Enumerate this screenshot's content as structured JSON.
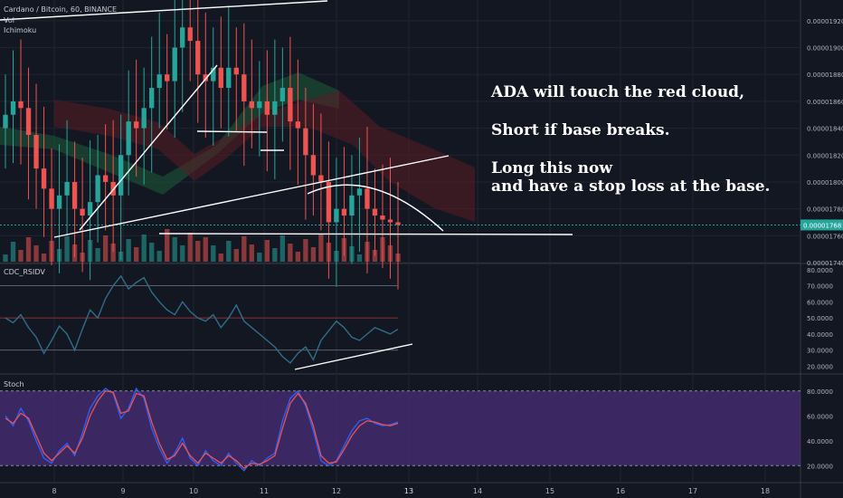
{
  "header": {
    "symbol_line": "Cardano / Bitcoin, 60, BINANCE",
    "vol_label": "Vol",
    "ichimoku_label": "Ichimoku"
  },
  "annotations": [
    "ADA will touch the red cloud,",
    "Short if base breaks.",
    "Long this now",
    "and have a stop loss at the base."
  ],
  "colors": {
    "background": "#131722",
    "up_candle": "#26a69a",
    "down_candle": "#ef5350",
    "cloud_green": "#1e5c3a",
    "cloud_red": "#5a1c22",
    "rsi_line": "#2f6e8a",
    "stoch_k": "#2962ff",
    "stoch_d": "#ef5350",
    "stoch_band": "#4a2e78",
    "price_tag": "#26a69a"
  },
  "chart_data": [
    {
      "type": "candlestick",
      "title": "Cardano / Bitcoin, 60, BINANCE",
      "x_ticks": [
        "8",
        "9",
        "10",
        "11",
        "12",
        "13",
        "14",
        "15",
        "16",
        "17",
        "18"
      ],
      "y_ticks": [
        "0.00001920",
        "0.00001900",
        "0.00001880",
        "0.00001860",
        "0.00001840",
        "0.00001820",
        "0.00001800",
        "0.00001780",
        "0.00001760",
        "0.00001740"
      ],
      "ylim": [
        1.74e-05,
        1.93e-05
      ],
      "current_price": "0.00001768",
      "close_series": [
        1.85e-05,
        1.86e-05,
        1.855e-05,
        1.835e-05,
        1.81e-05,
        1.795e-05,
        1.78e-05,
        1.79e-05,
        1.8e-05,
        1.78e-05,
        1.775e-05,
        1.785e-05,
        1.805e-05,
        1.8e-05,
        1.79e-05,
        1.82e-05,
        1.845e-05,
        1.84e-05,
        1.855e-05,
        1.87e-05,
        1.88e-05,
        1.875e-05,
        1.9e-05,
        1.915e-05,
        1.905e-05,
        1.88e-05,
        1.875e-05,
        1.885e-05,
        1.87e-05,
        1.885e-05,
        1.88e-05,
        1.86e-05,
        1.855e-05,
        1.86e-05,
        1.85e-05,
        1.86e-05,
        1.87e-05,
        1.845e-05,
        1.84e-05,
        1.82e-05,
        1.805e-05,
        1.8e-05,
        1.77e-05,
        1.78e-05,
        1.775e-05,
        1.79e-05,
        1.795e-05,
        1.78e-05,
        1.775e-05,
        1.772e-05,
        1.77e-05,
        1.768e-05
      ]
    },
    {
      "type": "line",
      "title": "CDC_RSIDV",
      "y_ticks": [
        "80.0000",
        "70.0000",
        "60.0000",
        "50.0000",
        "40.0000",
        "30.0000",
        "20.0000"
      ],
      "ylim": [
        18,
        81
      ],
      "levels": [
        70,
        50,
        30
      ],
      "values": [
        50,
        47,
        52,
        44,
        38,
        28,
        36,
        45,
        40,
        30,
        43,
        55,
        50,
        62,
        70,
        76,
        68,
        72,
        75,
        66,
        60,
        55,
        52,
        60,
        54,
        50,
        48,
        52,
        44,
        50,
        58,
        48,
        44,
        40,
        36,
        32,
        26,
        22,
        28,
        32,
        24,
        36,
        42,
        48,
        44,
        38,
        36,
        40,
        44,
        42,
        40,
        43
      ]
    },
    {
      "type": "line",
      "title": "Stoch",
      "y_ticks": [
        "80.0000",
        "60.0000",
        "40.0000",
        "20.0000"
      ],
      "ylim": [
        10,
        90
      ],
      "band": [
        20,
        80
      ],
      "series": [
        {
          "values": [
            60,
            52,
            66,
            56,
            40,
            26,
            22,
            32,
            38,
            28,
            46,
            66,
            76,
            82,
            78,
            58,
            66,
            82,
            74,
            50,
            34,
            22,
            30,
            42,
            26,
            20,
            32,
            24,
            20,
            30,
            22,
            16,
            24,
            20,
            26,
            30,
            56,
            74,
            80,
            68,
            48,
            24,
            20,
            24,
            36,
            48,
            56,
            58,
            54,
            52,
            53,
            55
          ]
        },
        {
          "values": [
            58,
            54,
            62,
            58,
            44,
            30,
            24,
            30,
            36,
            30,
            42,
            60,
            72,
            80,
            79,
            62,
            64,
            78,
            76,
            55,
            38,
            25,
            28,
            38,
            28,
            22,
            30,
            26,
            22,
            28,
            24,
            18,
            22,
            21,
            24,
            28,
            50,
            70,
            78,
            70,
            52,
            28,
            22,
            23,
            33,
            44,
            52,
            56,
            55,
            53,
            52,
            54
          ]
        }
      ]
    }
  ]
}
